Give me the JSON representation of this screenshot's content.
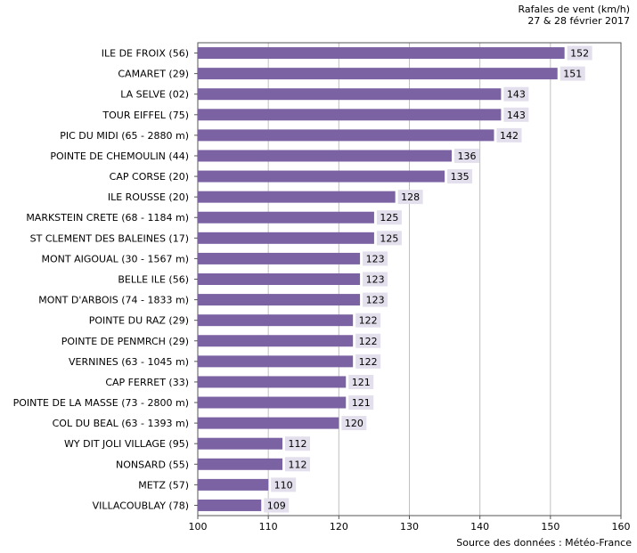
{
  "chart_data": {
    "type": "bar",
    "orientation": "horizontal",
    "title": "Rafales de vent (km/h)",
    "subtitle": "27 & 28 février 2017",
    "source": "Source des données : Météo-France",
    "categories": [
      "ILE DE FROIX (56)",
      "CAMARET (29)",
      "LA SELVE (02)",
      "TOUR EIFFEL (75)",
      "PIC DU MIDI (65 - 2880 m)",
      "POINTE DE CHEMOULIN (44)",
      "CAP CORSE (20)",
      "ILE ROUSSE (20)",
      "MARKSTEIN CRETE (68 - 1184 m)",
      "ST CLEMENT DES BALEINES (17)",
      "MONT AIGOUAL (30 - 1567 m)",
      "BELLE ILE (56)",
      "MONT D'ARBOIS (74 - 1833 m)",
      "POINTE DU RAZ (29)",
      "POINTE DE PENMRCH (29)",
      "VERNINES (63 - 1045 m)",
      "CAP FERRET (33)",
      "POINTE DE LA MASSE (73 - 2800 m)",
      "COL DU BEAL (63 - 1393 m)",
      "WY DIT JOLI VILLAGE (95)",
      "NONSARD (55)",
      "METZ (57)",
      "VILLACOUBLAY (78)"
    ],
    "values": [
      152,
      151,
      143,
      143,
      142,
      136,
      135,
      128,
      125,
      125,
      123,
      123,
      123,
      122,
      122,
      122,
      121,
      121,
      120,
      112,
      112,
      110,
      109
    ],
    "xlim": [
      100,
      160
    ],
    "xticks": [
      100,
      110,
      120,
      130,
      140,
      150,
      160
    ],
    "grid": true,
    "legend": false,
    "colors": {
      "bar": "#7b62a3",
      "label_bg": "#e3dfec",
      "grid": "#c0c0c0",
      "axis": "#555555"
    }
  }
}
